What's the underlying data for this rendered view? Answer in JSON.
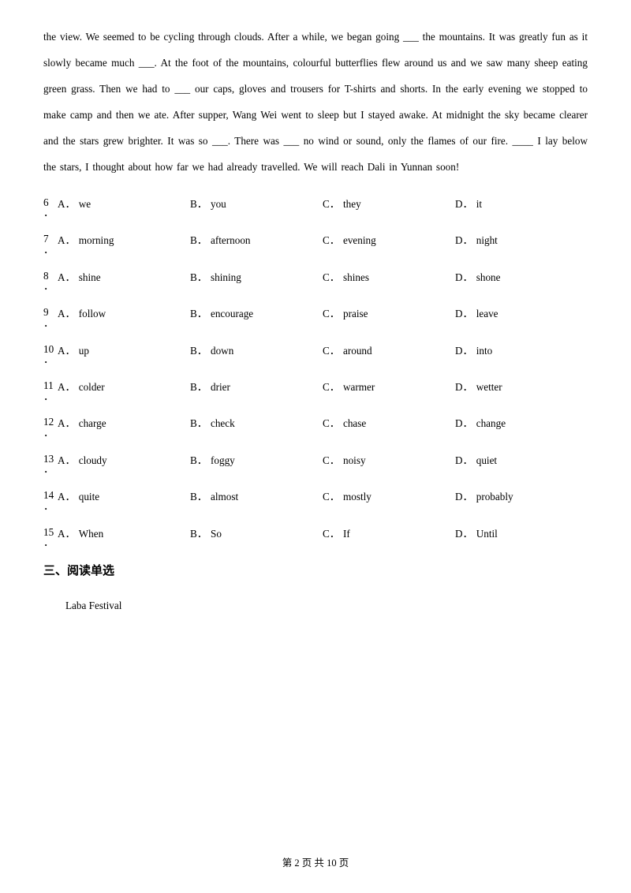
{
  "passage": {
    "segments": [
      "the view. We seemed to be cycling through clouds. After a while, we began going ___ the mountains. It was greatly fun as it slowly became much ___. At the foot of the mountains, colourful butterflies flew around us and we saw many sheep eating green grass. Then we had to ___ our caps, gloves and trousers for T-shirts and shorts. In the early evening we stopped to make camp and then we ate. After supper, Wang Wei went to sleep but I stayed awake. At midnight the sky became clearer and the stars grew brighter. It was so ___. There was ___ no wind or sound, only the flames of our fire. ____ I lay below the stars, I thought about how far we had already travelled. We will reach Dali in Yunnan soon!"
    ]
  },
  "questions": [
    {
      "num": "6",
      "opts": [
        "we",
        "you",
        "they",
        "it"
      ]
    },
    {
      "num": "7",
      "opts": [
        "morning",
        "afternoon",
        "evening",
        "night"
      ]
    },
    {
      "num": "8",
      "opts": [
        "shine",
        "shining",
        "shines",
        "shone"
      ]
    },
    {
      "num": "9",
      "opts": [
        "follow",
        "encourage",
        "praise",
        "leave"
      ]
    },
    {
      "num": "10",
      "opts": [
        "up",
        "down",
        "around",
        "into"
      ]
    },
    {
      "num": "11",
      "opts": [
        "colder",
        "drier",
        "warmer",
        "wetter"
      ]
    },
    {
      "num": "12",
      "opts": [
        "charge",
        "check",
        "chase",
        "change"
      ]
    },
    {
      "num": "13",
      "opts": [
        "cloudy",
        "foggy",
        "noisy",
        "quiet"
      ]
    },
    {
      "num": "14",
      "opts": [
        "quite",
        "almost",
        "mostly",
        "probably"
      ]
    },
    {
      "num": "15",
      "opts": [
        "When",
        "So",
        "If",
        "Until"
      ]
    }
  ],
  "option_letters": [
    "A．",
    "B．",
    "C．",
    "D．"
  ],
  "section_heading": "三、阅读单选",
  "sub_passage": "Laba Festival",
  "footer": {
    "prefix": "第 ",
    "page": "2",
    "mid": " 页 共 ",
    "total": "10",
    "suffix": " 页"
  },
  "colors": {
    "background": "#ffffff",
    "text": "#000000"
  },
  "typography": {
    "body_font_family": "SimSun",
    "body_font_size_pt": 10,
    "heading_font_family": "SimHei",
    "heading_font_size_pt": 11
  }
}
